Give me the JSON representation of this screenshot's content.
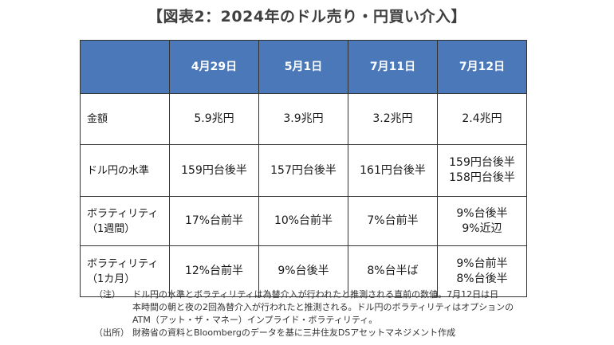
{
  "title": "【図表2：2024年のドル売り・円買い介入】",
  "table": {
    "headers": [
      "",
      "4月29日",
      "5月1日",
      "7月11日",
      "7月12日"
    ],
    "rows": [
      {
        "label": [
          "金額"
        ],
        "cells": [
          [
            "5.9兆円"
          ],
          [
            "3.9兆円"
          ],
          [
            "3.2兆円"
          ],
          [
            "2.4兆円"
          ]
        ]
      },
      {
        "label": [
          "ドル円の水準"
        ],
        "cells": [
          [
            "159円台後半"
          ],
          [
            "157円台後半"
          ],
          [
            "161円台後半"
          ],
          [
            "159円台後半",
            "158円台後半"
          ]
        ]
      },
      {
        "label": [
          "ボラティリティ",
          "（1週間）"
        ],
        "cells": [
          [
            "17%台前半"
          ],
          [
            "10%台前半"
          ],
          [
            "7%台前半"
          ],
          [
            "9%台後半",
            "9%近辺"
          ]
        ]
      },
      {
        "label": [
          "ボラティリティ",
          "（1カ月）"
        ],
        "cells": [
          [
            "12%台前半"
          ],
          [
            "9%台後半"
          ],
          [
            "8%台半ば"
          ],
          [
            "9%台前半",
            "8%台後半"
          ]
        ]
      }
    ]
  },
  "notes": [
    {
      "tag": "（注）",
      "lines": [
        "ドル円の水準とボラティリティは為替介入が行われたと推測される直前の数値。7月12日は日",
        "本時間の朝と夜の2回為替介入が行われたと推測される。ドル円のボラティリティはオプションの",
        "ATM（アット・ザ・マネー）インプライド・ボラティリティ。"
      ]
    },
    {
      "tag": "（出所）",
      "lines": [
        "財務省の資料とBloombergのデータを基に三井住友DSアセットマネジメント作成"
      ]
    }
  ],
  "colors": {
    "header_bg": "#4a78b8",
    "header_text": "#ffffff",
    "border": "#333333"
  }
}
